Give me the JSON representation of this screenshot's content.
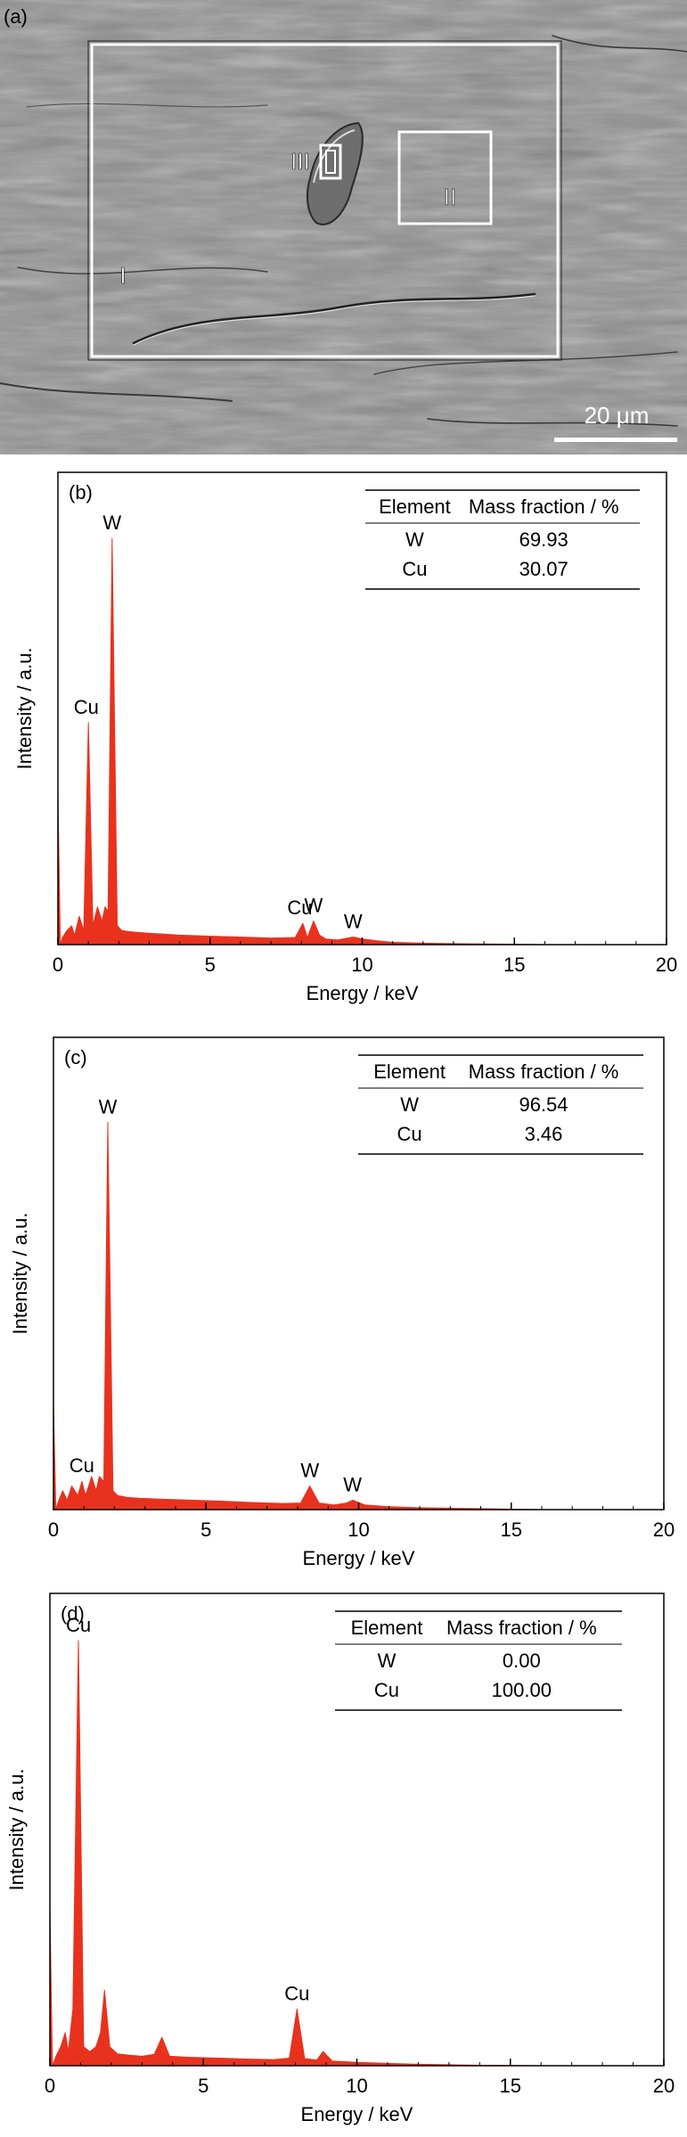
{
  "sem_panel": {
    "label": "(a)",
    "scale_bar_label": "20 μm",
    "regions": [
      "I",
      "II",
      "III"
    ],
    "colors": {
      "background": "#8f8f8f",
      "box": "#ffffff"
    }
  },
  "chart_data": [
    {
      "type": "area",
      "panel_label": "(b)",
      "xlabel": "Energy / keV",
      "ylabel": "Intensity / a.u.",
      "xlim": [
        0,
        20
      ],
      "xticks": [
        0,
        5,
        10,
        15,
        20
      ],
      "ylim": [
        0,
        100
      ],
      "color": "#e8321e",
      "series": [
        {
          "x": [
            0,
            0.08,
            0.15,
            0.3,
            0.45,
            0.55,
            0.7,
            0.85,
            1.0,
            1.15,
            1.3,
            1.45,
            1.55,
            1.65,
            1.78,
            1.95,
            2.1,
            2.3,
            2.6,
            3.0,
            3.5,
            4.0,
            5.0,
            6.0,
            7.0,
            7.8,
            8.05,
            8.2,
            8.4,
            8.6,
            8.8,
            9.2,
            9.7,
            10.0,
            10.5,
            11,
            12,
            13,
            14,
            15,
            16,
            18,
            20
          ],
          "y": [
            32,
            0,
            1.5,
            3,
            4,
            2,
            6,
            3,
            47,
            4,
            8,
            5,
            8,
            7,
            86,
            4,
            3,
            2.8,
            2.6,
            2.4,
            2.2,
            2.0,
            1.8,
            1.6,
            1.4,
            1.5,
            4.5,
            1.5,
            5,
            2,
            1.2,
            1.0,
            1.6,
            1.2,
            0.8,
            0.5,
            0.3,
            0.2,
            0.15,
            0.1,
            0,
            0,
            0
          ]
        }
      ],
      "peak_labels": [
        {
          "text": "W",
          "x": 1.78,
          "y": 86
        },
        {
          "text": "Cu",
          "x": 0.93,
          "y": 47
        },
        {
          "text": "Cu",
          "x": 7.95,
          "y": 4.5
        },
        {
          "text": "W",
          "x": 8.4,
          "y": 5
        },
        {
          "text": "W",
          "x": 9.7,
          "y": 1.6
        }
      ],
      "table": {
        "headers": [
          "Element",
          "Mass fraction / %"
        ],
        "rows": [
          [
            "W",
            "69.93"
          ],
          [
            "Cu",
            "30.07"
          ]
        ]
      }
    },
    {
      "type": "area",
      "panel_label": "(c)",
      "xlabel": "Energy / keV",
      "ylabel": "Intensity / a.u.",
      "xlim": [
        0,
        20
      ],
      "xticks": [
        0,
        5,
        10,
        15,
        20
      ],
      "ylim": [
        0,
        100
      ],
      "color": "#e8321e",
      "series": [
        {
          "x": [
            0,
            0.08,
            0.15,
            0.3,
            0.45,
            0.6,
            0.8,
            0.93,
            1.05,
            1.25,
            1.4,
            1.5,
            1.65,
            1.78,
            1.95,
            2.1,
            2.4,
            2.8,
            3.5,
            4.5,
            5.5,
            6.5,
            7.5,
            8.1,
            8.4,
            8.7,
            9.2,
            9.6,
            9.8,
            10.2,
            11,
            12,
            13,
            14,
            15,
            16,
            18,
            20
          ],
          "y": [
            22,
            0,
            1.5,
            4,
            2,
            5,
            3,
            6,
            3,
            7,
            4,
            7,
            6,
            82,
            4,
            3,
            2.6,
            2.4,
            2.2,
            2.0,
            1.8,
            1.5,
            1.3,
            1.4,
            5,
            1.4,
            1.0,
            1.4,
            2,
            1.0,
            0.6,
            0.4,
            0.3,
            0.2,
            0.1,
            0,
            0,
            0
          ]
        }
      ],
      "peak_labels": [
        {
          "text": "W",
          "x": 1.78,
          "y": 82
        },
        {
          "text": "Cu",
          "x": 0.93,
          "y": 6
        },
        {
          "text": "W",
          "x": 8.4,
          "y": 5
        },
        {
          "text": "W",
          "x": 9.8,
          "y": 2
        }
      ],
      "table": {
        "headers": [
          "Element",
          "Mass fraction / %"
        ],
        "rows": [
          [
            "W",
            "96.54"
          ],
          [
            "Cu",
            "3.46"
          ]
        ]
      }
    },
    {
      "type": "area",
      "panel_label": "(d)",
      "xlabel": "Energy / keV",
      "ylabel": "Intensity / a.u.",
      "xlim": [
        0,
        20
      ],
      "xticks": [
        0,
        5,
        10,
        15,
        20
      ],
      "ylim": [
        0,
        100
      ],
      "color": "#e8321e",
      "series": [
        {
          "x": [
            0,
            0.08,
            0.2,
            0.35,
            0.5,
            0.6,
            0.75,
            0.93,
            1.1,
            1.3,
            1.5,
            1.65,
            1.78,
            1.95,
            2.2,
            2.6,
            3.0,
            3.4,
            3.65,
            3.9,
            4.5,
            5.5,
            6.5,
            7.3,
            7.8,
            8.05,
            8.3,
            8.7,
            8.9,
            9.2,
            10,
            11,
            12,
            13,
            14,
            15,
            16,
            18,
            20
          ],
          "y": [
            34,
            0,
            2,
            4,
            7,
            3,
            12,
            90,
            4,
            3,
            4,
            7,
            16,
            4,
            2.5,
            2.2,
            2.0,
            2.4,
            6,
            2,
            1.8,
            1.6,
            1.4,
            1.3,
            1.6,
            12,
            1.5,
            1.2,
            3,
            1.0,
            0.7,
            0.5,
            0.3,
            0.2,
            0.1,
            0.05,
            0,
            0,
            0
          ]
        }
      ],
      "peak_labels": [
        {
          "text": "Cu",
          "x": 0.93,
          "y": 90
        },
        {
          "text": "Cu",
          "x": 8.05,
          "y": 12
        }
      ],
      "table": {
        "headers": [
          "Element",
          "Mass fraction / %"
        ],
        "rows": [
          [
            "W",
            "0.00"
          ],
          [
            "Cu",
            "100.00"
          ]
        ]
      }
    }
  ]
}
